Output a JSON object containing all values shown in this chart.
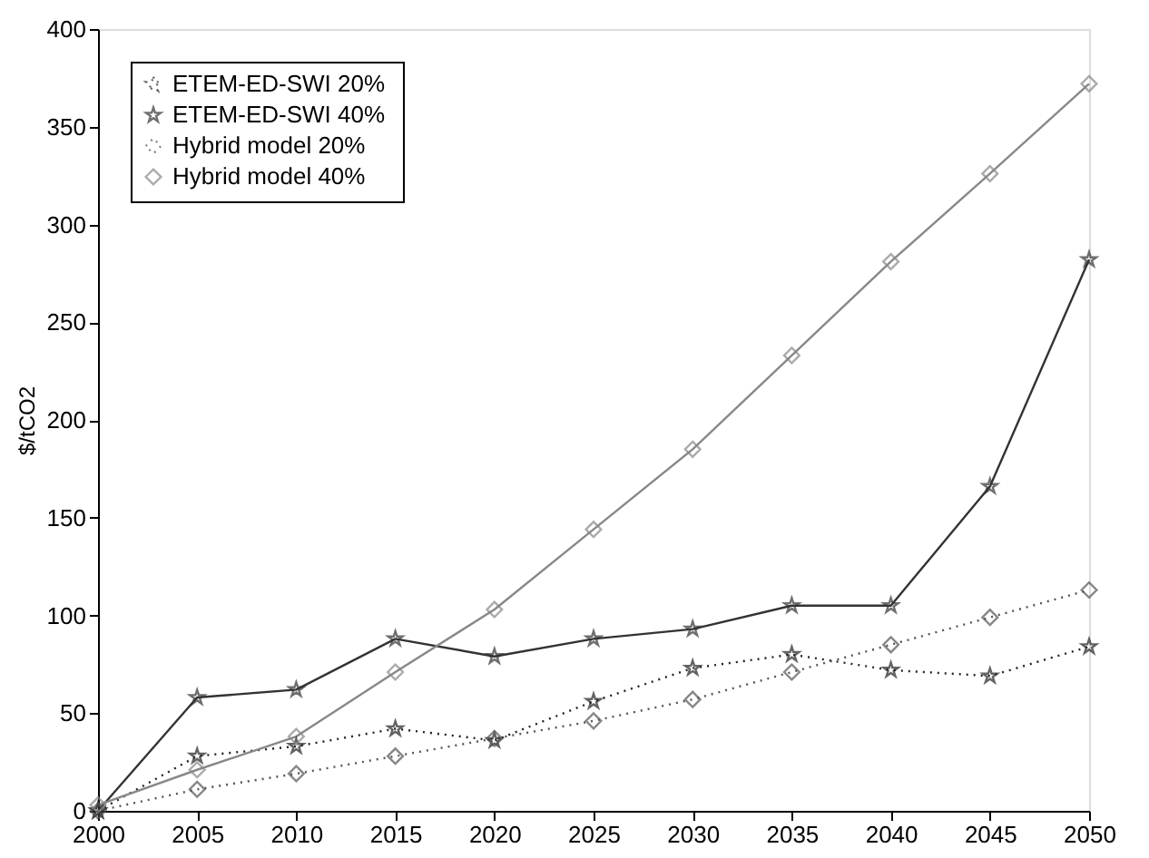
{
  "chart_data": {
    "type": "line",
    "ylabel": "$/tCO2",
    "x": [
      2000,
      2005,
      2010,
      2015,
      2020,
      2025,
      2030,
      2035,
      2040,
      2045,
      2050
    ],
    "series": [
      {
        "name": "ETEM-ED-SWI  20%",
        "color": "#222222",
        "marker": "star",
        "line_style": "dotted",
        "values": [
          0,
          28,
          33,
          42,
          36,
          56,
          73,
          80,
          72,
          69,
          84
        ]
      },
      {
        "name": "ETEM-ED-SWI  40%",
        "color": "#333333",
        "marker": "star",
        "line_style": "solid",
        "values": [
          0,
          58,
          62,
          88,
          79,
          88,
          93,
          105,
          105,
          166,
          282
        ]
      },
      {
        "name": "Hybrid model  20%",
        "color": "#555555",
        "marker": "diamond",
        "line_style": "dotted",
        "values": [
          0,
          11,
          19,
          28,
          37,
          46,
          57,
          71,
          85,
          99,
          113
        ]
      },
      {
        "name": "Hybrid model  40%",
        "color": "#888888",
        "marker": "diamond",
        "line_style": "solid",
        "values": [
          3,
          21,
          38,
          71,
          103,
          144,
          185,
          233,
          281,
          326,
          372
        ]
      }
    ],
    "xlim": [
      2000,
      2050
    ],
    "xticks": [
      2000,
      2005,
      2010,
      2015,
      2020,
      2025,
      2030,
      2035,
      2040,
      2045,
      2050
    ],
    "ylim": [
      0,
      400
    ],
    "yticks": [
      0,
      50,
      100,
      150,
      200,
      250,
      300,
      350,
      400
    ],
    "grid": false,
    "legend": "top left"
  }
}
